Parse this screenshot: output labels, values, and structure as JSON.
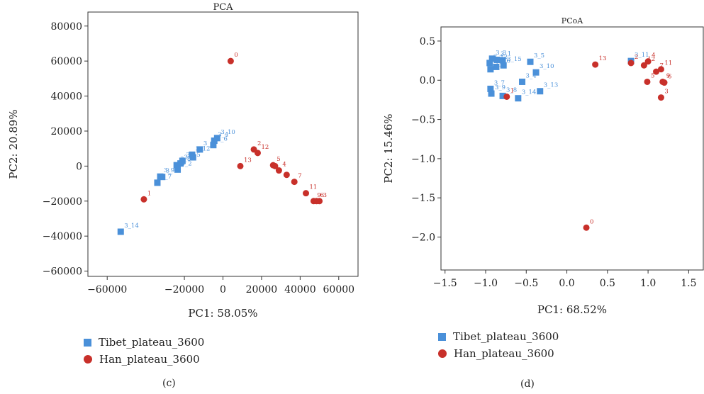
{
  "colors": {
    "tibet": "#4a90d9",
    "han": "#c8302a",
    "axis": "#333333",
    "point_label_tibet": "#4a90d9",
    "point_label_han": "#c8302a"
  },
  "legend": {
    "tibet_label": "Tibet_plateau_3600",
    "han_label": "Han_plateau_3600"
  },
  "captions": {
    "c": "(c)",
    "d": "(d)"
  },
  "chart_data": [
    {
      "type": "scatter",
      "title": "PCA",
      "xlabel": "PC1: 58.05%",
      "ylabel": "PC2: 20.89%",
      "xlim": [
        -70000,
        70000
      ],
      "ylim": [
        -63000,
        88000
      ],
      "xticks": [
        -60000,
        -20000,
        0,
        20000,
        40000,
        60000
      ],
      "xtick_labels": [
        "−60000",
        "−20000",
        "0",
        "20000",
        "40000",
        "60000"
      ],
      "yticks": [
        -60000,
        -40000,
        -20000,
        0,
        20000,
        40000,
        60000,
        80000
      ],
      "ytick_labels": [
        "−60000",
        "−40000",
        "−20000",
        "0",
        "20000",
        "40000",
        "60000",
        "80000"
      ],
      "series": [
        {
          "name": "Tibet_plateau_3600",
          "marker": "square",
          "points": [
            {
              "label": "3_14",
              "x": -53000,
              "y": -37500
            },
            {
              "label": "3_7",
              "x": -34000,
              "y": -9500
            },
            {
              "label": "3_9",
              "x": -32500,
              "y": -6000
            },
            {
              "label": "3_",
              "x": -31500,
              "y": -6200
            },
            {
              "label": "3_8",
              "x": -24000,
              "y": 500
            },
            {
              "label": "3_2",
              "x": -23500,
              "y": -2000
            },
            {
              "label": "3_1",
              "x": -22000,
              "y": 1500
            },
            {
              "label": "3_15",
              "x": -21000,
              "y": 3000
            },
            {
              "label": "3_12",
              "x": -16000,
              "y": 6500
            },
            {
              "label": "",
              "x": -15500,
              "y": 5000
            },
            {
              "label": "3_5",
              "x": -12000,
              "y": 9500
            },
            {
              "label": "3_6",
              "x": -5000,
              "y": 12000
            },
            {
              "label": "3_4",
              "x": -4500,
              "y": 14500
            },
            {
              "label": "3_10",
              "x": -3000,
              "y": 16000
            }
          ]
        },
        {
          "name": "Han_plateau_3600",
          "marker": "circle",
          "points": [
            {
              "label": "0",
              "x": 4000,
              "y": 60000
            },
            {
              "label": "1",
              "x": -41000,
              "y": -19000
            },
            {
              "label": "13",
              "x": 9000,
              "y": 0
            },
            {
              "label": "2",
              "x": 16000,
              "y": 9500
            },
            {
              "label": "12",
              "x": 18000,
              "y": 7500
            },
            {
              "label": "5",
              "x": 26000,
              "y": 500
            },
            {
              "label": "",
              "x": 27000,
              "y": 0
            },
            {
              "label": "4",
              "x": 29000,
              "y": -2500
            },
            {
              "label": "",
              "x": 33000,
              "y": -5000
            },
            {
              "label": "7",
              "x": 37000,
              "y": -9000
            },
            {
              "label": "11",
              "x": 43000,
              "y": -15500
            },
            {
              "label": "9",
              "x": 47000,
              "y": -20000
            },
            {
              "label": "6",
              "x": 48500,
              "y": -20000
            },
            {
              "label": "3",
              "x": 50000,
              "y": -20000
            }
          ]
        }
      ]
    },
    {
      "type": "scatter",
      "title": "PCoA",
      "xlabel": "PC1: 68.52%",
      "ylabel": "PC2: 15.46%",
      "xlim": [
        -1.55,
        1.68
      ],
      "ylim": [
        -2.42,
        0.68
      ],
      "xticks": [
        -1.5,
        -1.0,
        -0.5,
        0.0,
        0.5,
        1.0,
        1.5
      ],
      "xtick_labels": [
        "−1.5",
        "−1.0",
        "−0.5",
        "0.0",
        "0.5",
        "1.0",
        "1.5"
      ],
      "yticks": [
        -2.0,
        -1.5,
        -1.0,
        -0.5,
        0.0,
        0.5
      ],
      "ytick_labels": [
        "−2.0",
        "−1.5",
        "−1.0",
        "−0.5",
        "0.0",
        "0.5"
      ],
      "series": [
        {
          "name": "Tibet_plateau_3600",
          "marker": "square",
          "points": [
            {
              "label": "3_3",
              "x": -0.92,
              "y": 0.275
            },
            {
              "label": "3_12",
              "x": -0.95,
              "y": 0.22
            },
            {
              "label": "3_2",
              "x": -0.94,
              "y": 0.14
            },
            {
              "label": "3_6",
              "x": -0.87,
              "y": 0.17
            },
            {
              "label": "3_1",
              "x": -0.86,
              "y": 0.26
            },
            {
              "label": "",
              "x": -0.79,
              "y": 0.255
            },
            {
              "label": "3_15",
              "x": -0.78,
              "y": 0.19
            },
            {
              "label": "3_5",
              "x": -0.45,
              "y": 0.235
            },
            {
              "label": "3_10",
              "x": -0.38,
              "y": 0.1
            },
            {
              "label": "3_4",
              "x": -0.55,
              "y": -0.02
            },
            {
              "label": "3_13",
              "x": -0.33,
              "y": -0.14
            },
            {
              "label": "3_7",
              "x": -0.94,
              "y": -0.11
            },
            {
              "label": "3_9",
              "x": -0.93,
              "y": -0.17
            },
            {
              "label": "3_8",
              "x": -0.79,
              "y": -0.2
            },
            {
              "label": "3_14",
              "x": -0.6,
              "y": -0.23
            },
            {
              "label": "3_11",
              "x": 0.79,
              "y": 0.245
            }
          ]
        },
        {
          "name": "Han_plateau_3600",
          "marker": "circle",
          "points": [
            {
              "label": "1",
              "x": -0.74,
              "y": -0.21
            },
            {
              "label": "13",
              "x": 0.35,
              "y": 0.2
            },
            {
              "label": "2",
              "x": 0.79,
              "y": 0.22
            },
            {
              "label": "4",
              "x": 1.0,
              "y": 0.24
            },
            {
              "label": "12",
              "x": 0.95,
              "y": 0.19
            },
            {
              "label": "11",
              "x": 1.16,
              "y": 0.14
            },
            {
              "label": "7",
              "x": 1.1,
              "y": 0.11
            },
            {
              "label": "5",
              "x": 0.99,
              "y": -0.02
            },
            {
              "label": "9",
              "x": 1.18,
              "y": -0.02
            },
            {
              "label": "6",
              "x": 1.2,
              "y": -0.03
            },
            {
              "label": "3",
              "x": 1.16,
              "y": -0.22
            },
            {
              "label": "0",
              "x": 0.24,
              "y": -1.88
            }
          ]
        }
      ]
    }
  ]
}
